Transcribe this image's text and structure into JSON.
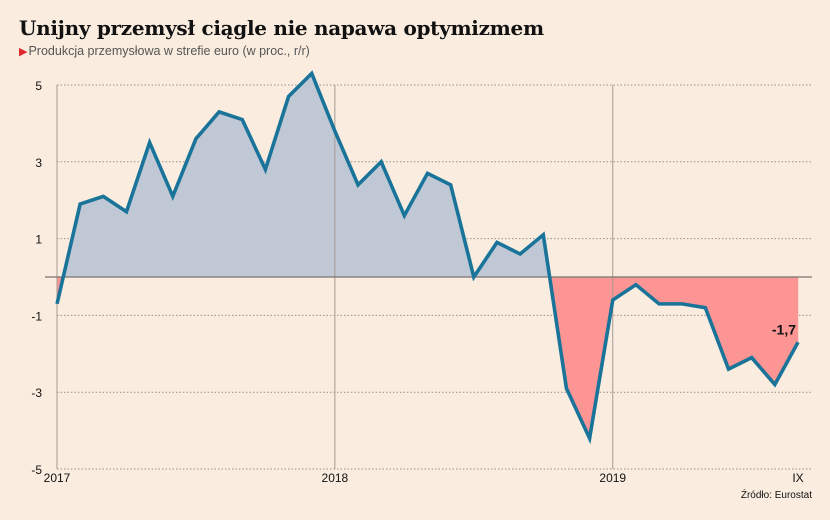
{
  "chart_data": {
    "type": "area",
    "title": "Unijny przemysł ciągle nie napawa optymizmem",
    "subtitle": "Produkcja przemysłowa w strefie euro (w proc., r/r)",
    "xlabel": "",
    "ylabel": "",
    "ylim": [
      -5,
      5
    ],
    "yticks": [
      5,
      3,
      1,
      -1,
      -3,
      -5
    ],
    "ytick_labels": [
      "5",
      "3",
      "1",
      "-1",
      "-3",
      "-5"
    ],
    "x_tick_labels": [
      {
        "label": "2017",
        "index": 0
      },
      {
        "label": "2018",
        "index": 12
      },
      {
        "label": "2019",
        "index": 24
      },
      {
        "label": "IX",
        "index": 32
      }
    ],
    "grid": true,
    "x": [
      "2017-01",
      "2017-02",
      "2017-03",
      "2017-04",
      "2017-05",
      "2017-06",
      "2017-07",
      "2017-08",
      "2017-09",
      "2017-10",
      "2017-11",
      "2017-12",
      "2018-01",
      "2018-02",
      "2018-03",
      "2018-04",
      "2018-05",
      "2018-06",
      "2018-07",
      "2018-08",
      "2018-09",
      "2018-10",
      "2018-11",
      "2018-12",
      "2019-01",
      "2019-02",
      "2019-03",
      "2019-04",
      "2019-05",
      "2019-06",
      "2019-07",
      "2019-08",
      "2019-09"
    ],
    "series": [
      {
        "name": "Produkcja przemysłowa r/r",
        "values": [
          -0.7,
          1.9,
          2.1,
          1.7,
          3.5,
          2.1,
          3.6,
          4.3,
          4.1,
          2.8,
          4.7,
          5.3,
          3.8,
          2.4,
          3.0,
          1.6,
          2.7,
          2.4,
          0.0,
          0.9,
          0.6,
          1.1,
          -2.9,
          -4.2,
          -0.6,
          -0.2,
          -0.7,
          -0.7,
          -0.8,
          -2.4,
          -2.1,
          -2.8,
          -1.7
        ]
      }
    ],
    "annotations": [
      {
        "text": "-1,7",
        "index": 32
      }
    ],
    "colors": {
      "line": "#1a7499",
      "positive_fill": "#c0c8d6",
      "negative_fill": "#fd9595",
      "background": "#faede0"
    },
    "source": "Źródło: Eurostat"
  }
}
